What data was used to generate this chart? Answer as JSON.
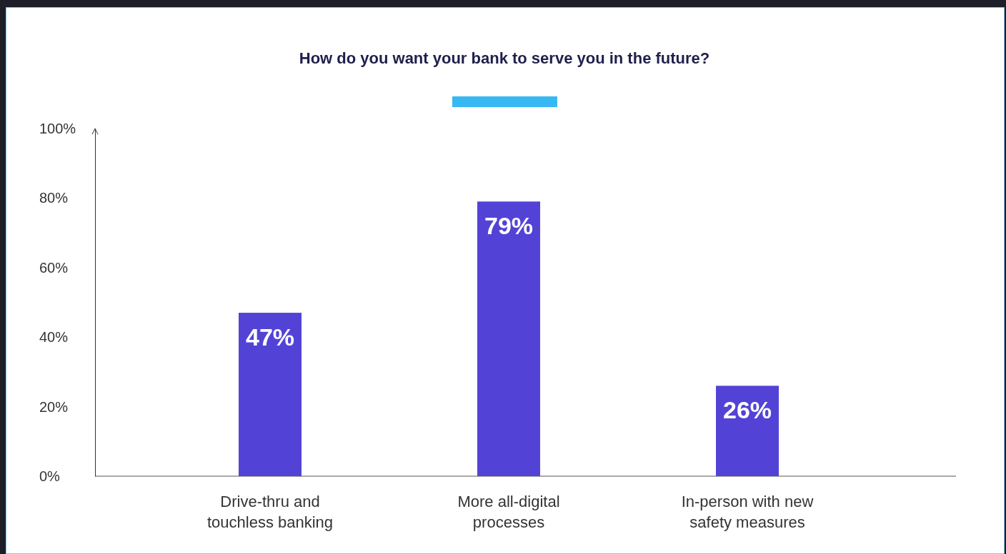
{
  "chart_data": {
    "type": "bar",
    "title": "How do you want your bank to serve you in the future?",
    "categories": [
      "Drive-thru and touchless banking",
      "More all-digital processes",
      "In-person with new safety measures"
    ],
    "values": [
      47,
      79,
      26
    ],
    "color": "#5243d6",
    "value_labels": [
      "47%",
      "79%",
      "26%"
    ],
    "ylim": [
      0,
      100
    ],
    "yticks": [
      {
        "value": 0,
        "label": "0%"
      },
      {
        "value": 20,
        "label": "20%"
      },
      {
        "value": 40,
        "label": "40%"
      },
      {
        "value": 60,
        "label": "60%"
      },
      {
        "value": 80,
        "label": "80%"
      },
      {
        "value": 100,
        "label": "100%"
      }
    ],
    "grid": false
  }
}
